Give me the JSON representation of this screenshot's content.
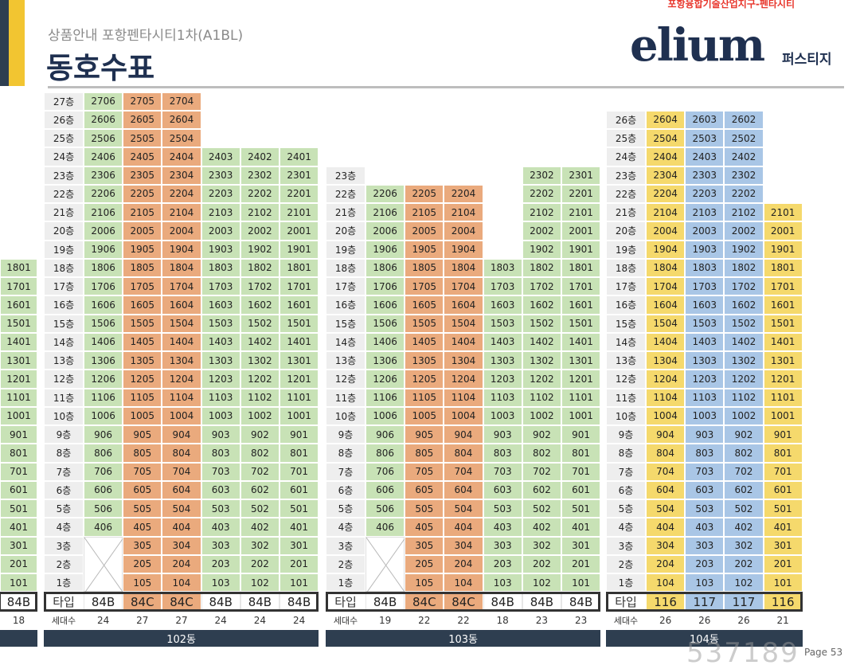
{
  "header": {
    "subtitle": "상품안내 포항펜타시티1차(A1BL)",
    "title": "동호수표",
    "brand_top": "포항융합기술산업지구-펜타시티",
    "brand_logo": "elium",
    "brand_sub": "퍼스티지"
  },
  "labels": {
    "type_label": "타입",
    "count_label": "세대수"
  },
  "page_number": "Page 53",
  "watermark": "537189",
  "colors": {
    "green": "#c8e2b6",
    "orange": "#eaaa7d",
    "yellow": "#f5d96c",
    "blue": "#a9c6e6",
    "footer": "#2e3e50",
    "accent": "#f2c531"
  },
  "partial_building": {
    "column": {
      "top": 18,
      "type": "84B",
      "count": "18"
    }
  },
  "buildings": [
    {
      "name": "102동",
      "floor_top": 27,
      "columns": [
        {
          "line": "06",
          "top": 27,
          "bottom": 4,
          "type": "84B",
          "count": "24",
          "color": "green"
        },
        {
          "line": "05",
          "top": 27,
          "bottom": 1,
          "type": "84C",
          "count": "27",
          "color": "orange"
        },
        {
          "line": "04",
          "top": 27,
          "bottom": 1,
          "type": "84C",
          "count": "27",
          "color": "orange"
        },
        {
          "line": "03",
          "top": 24,
          "bottom": 1,
          "type": "84B",
          "count": "24",
          "color": "green"
        },
        {
          "line": "02",
          "top": 24,
          "bottom": 1,
          "type": "84B",
          "count": "24",
          "color": "green"
        },
        {
          "line": "01",
          "top": 24,
          "bottom": 1,
          "type": "84B",
          "count": "24",
          "color": "green"
        }
      ]
    },
    {
      "name": "103동",
      "floor_top": 23,
      "columns": [
        {
          "line": "06",
          "top": 22,
          "bottom": 4,
          "type": "84B",
          "count": "19",
          "color": "green"
        },
        {
          "line": "05",
          "top": 22,
          "bottom": 1,
          "type": "84C",
          "count": "22",
          "color": "orange"
        },
        {
          "line": "04",
          "top": 22,
          "bottom": 1,
          "type": "84C",
          "count": "22",
          "color": "orange"
        },
        {
          "line": "03",
          "top": 18,
          "bottom": 1,
          "type": "84B",
          "count": "18",
          "color": "green"
        },
        {
          "line": "02",
          "top": 23,
          "bottom": 1,
          "type": "84B",
          "count": "23",
          "color": "green"
        },
        {
          "line": "01",
          "top": 23,
          "bottom": 1,
          "type": "84B",
          "count": "23",
          "color": "green"
        }
      ]
    },
    {
      "name": "104동",
      "floor_top": 26,
      "columns": [
        {
          "line": "04",
          "top": 26,
          "bottom": 1,
          "type": "116",
          "count": "26",
          "color": "yellow"
        },
        {
          "line": "03",
          "top": 26,
          "bottom": 1,
          "type": "117",
          "count": "26",
          "color": "blue"
        },
        {
          "line": "02",
          "top": 26,
          "bottom": 1,
          "type": "117",
          "count": "26",
          "color": "blue"
        },
        {
          "line": "01",
          "top": 21,
          "bottom": 1,
          "type": "116",
          "count": "21",
          "color": "yellow"
        }
      ]
    }
  ]
}
